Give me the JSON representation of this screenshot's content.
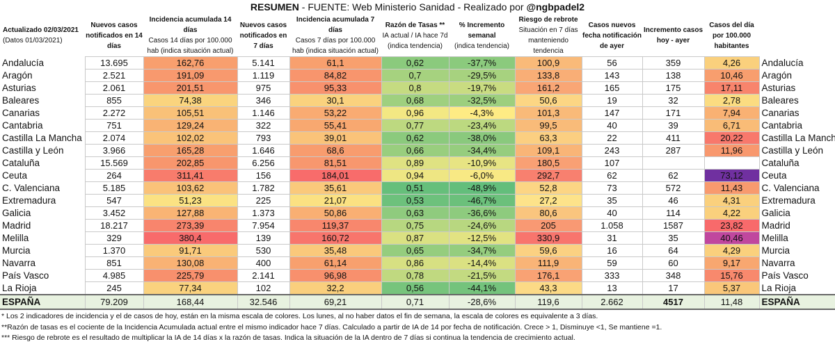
{
  "title": {
    "prefix": "RESUMEN",
    "source": " - FUENTE: Web Ministerio Sanidad  - Realizado por ",
    "author": "@ngbpadel2"
  },
  "headers": [
    {
      "b": "Actualizado 02/03/2021",
      "s": "(Datos 01/03/2021)"
    },
    {
      "b": "Nuevos casos notificados en 14 días",
      "s": ""
    },
    {
      "b": "Incidencia acumulada 14 días",
      "s": "Casos 14 días por 100.000 hab (indica situación actual)"
    },
    {
      "b": "Nuevos casos notificados en 7 días",
      "s": ""
    },
    {
      "b": "Incidencia acumulada 7 días",
      "s": "Casos 7 días por 100.000 hab (indica situación actual)"
    },
    {
      "b": "Razón de Tasas **",
      "s": "IA actual / IA hace 7d (indica tendencia)"
    },
    {
      "b": "% Incremento semanal",
      "s": "(indica tendencia)"
    },
    {
      "b": "Riesgo de rebrote",
      "s": "Situación en 7 días manteniendo tendencia"
    },
    {
      "b": "Casos nuevos fecha notificación de ayer",
      "s": ""
    },
    {
      "b": "Incremento casos hoy - ayer",
      "s": ""
    },
    {
      "b": "Casos del día por 100.000 habitantes",
      "s": ""
    },
    {
      "b": "",
      "s": ""
    }
  ],
  "rows": [
    {
      "name": "Andalucía",
      "c14": "13.695",
      "ia14": "162,76",
      "c7": "5.141",
      "ia7": "61,1",
      "rt": "0,62",
      "pct": "-37,7%",
      "rr": "100,9",
      "ayer": "56",
      "inc": "359",
      "dia": "4,26"
    },
    {
      "name": "Aragón",
      "c14": "2.521",
      "ia14": "191,09",
      "c7": "1.119",
      "ia7": "84,82",
      "rt": "0,7",
      "pct": "-29,5%",
      "rr": "133,8",
      "ayer": "143",
      "inc": "138",
      "dia": "10,46"
    },
    {
      "name": "Asturias",
      "c14": "2.061",
      "ia14": "201,51",
      "c7": "975",
      "ia7": "95,33",
      "rt": "0,8",
      "pct": "-19,7%",
      "rr": "161,2",
      "ayer": "165",
      "inc": "175",
      "dia": "17,11"
    },
    {
      "name": "Baleares",
      "c14": "855",
      "ia14": "74,38",
      "c7": "346",
      "ia7": "30,1",
      "rt": "0,68",
      "pct": "-32,5%",
      "rr": "50,6",
      "ayer": "19",
      "inc": "32",
      "dia": "2,78"
    },
    {
      "name": "Canarias",
      "c14": "2.272",
      "ia14": "105,51",
      "c7": "1.146",
      "ia7": "53,22",
      "rt": "0,96",
      "pct": "-4,3%",
      "rr": "101,3",
      "ayer": "147",
      "inc": "171",
      "dia": "7,94"
    },
    {
      "name": "Cantabria",
      "c14": "751",
      "ia14": "129,24",
      "c7": "322",
      "ia7": "55,41",
      "rt": "0,77",
      "pct": "-23,4%",
      "rr": "99,5",
      "ayer": "40",
      "inc": "39",
      "dia": "6,71"
    },
    {
      "name": "Castilla La Mancha",
      "c14": "2.074",
      "ia14": "102,02",
      "c7": "793",
      "ia7": "39,01",
      "rt": "0,62",
      "pct": "-38,0%",
      "rr": "63,3",
      "ayer": "22",
      "inc": "411",
      "dia": "20,22"
    },
    {
      "name": "Castilla y León",
      "c14": "3.966",
      "ia14": "165,28",
      "c7": "1.646",
      "ia7": "68,6",
      "rt": "0,66",
      "pct": "-34,4%",
      "rr": "109,1",
      "ayer": "243",
      "inc": "287",
      "dia": "11,96"
    },
    {
      "name": "Cataluña",
      "c14": "15.569",
      "ia14": "202,85",
      "c7": "6.256",
      "ia7": "81,51",
      "rt": "0,89",
      "pct": "-10,9%",
      "rr": "180,5",
      "ayer": "107",
      "inc": "",
      "dia": ""
    },
    {
      "name": "Ceuta",
      "c14": "264",
      "ia14": "311,41",
      "c7": "156",
      "ia7": "184,01",
      "rt": "0,94",
      "pct": "-6,0%",
      "rr": "292,7",
      "ayer": "62",
      "inc": "62",
      "dia": "73,12"
    },
    {
      "name": "C. Valenciana",
      "c14": "5.185",
      "ia14": "103,62",
      "c7": "1.782",
      "ia7": "35,61",
      "rt": "0,51",
      "pct": "-48,9%",
      "rr": "52,8",
      "ayer": "73",
      "inc": "572",
      "dia": "11,43"
    },
    {
      "name": "Extremadura",
      "c14": "547",
      "ia14": "51,23",
      "c7": "225",
      "ia7": "21,07",
      "rt": "0,53",
      "pct": "-46,7%",
      "rr": "27,2",
      "ayer": "35",
      "inc": "46",
      "dia": "4,31"
    },
    {
      "name": "Galicia",
      "c14": "3.452",
      "ia14": "127,88",
      "c7": "1.373",
      "ia7": "50,86",
      "rt": "0,63",
      "pct": "-36,6%",
      "rr": "80,6",
      "ayer": "40",
      "inc": "114",
      "dia": "4,22"
    },
    {
      "name": "Madrid",
      "c14": "18.217",
      "ia14": "273,39",
      "c7": "7.954",
      "ia7": "119,37",
      "rt": "0,75",
      "pct": "-24,6%",
      "rr": "205",
      "ayer": "1.058",
      "inc": "1587",
      "dia": "23,82"
    },
    {
      "name": "Melilla",
      "c14": "329",
      "ia14": "380,4",
      "c7": "139",
      "ia7": "160,72",
      "rt": "0,87",
      "pct": "-12,5%",
      "rr": "330,9",
      "ayer": "31",
      "inc": "35",
      "dia": "40,46"
    },
    {
      "name": "Murcia",
      "c14": "1.370",
      "ia14": "91,71",
      "c7": "530",
      "ia7": "35,48",
      "rt": "0,65",
      "pct": "-34,7%",
      "rr": "59,6",
      "ayer": "16",
      "inc": "64",
      "dia": "4,29"
    },
    {
      "name": "Navarra",
      "c14": "851",
      "ia14": "130,08",
      "c7": "400",
      "ia7": "61,14",
      "rt": "0,86",
      "pct": "-14,4%",
      "rr": "111,9",
      "ayer": "59",
      "inc": "60",
      "dia": "9,17"
    },
    {
      "name": "País Vasco",
      "c14": "4.985",
      "ia14": "225,79",
      "c7": "2.141",
      "ia7": "96,98",
      "rt": "0,78",
      "pct": "-21,5%",
      "rr": "176,1",
      "ayer": "333",
      "inc": "348",
      "dia": "15,76"
    },
    {
      "name": "La Rioja",
      "c14": "245",
      "ia14": "77,34",
      "c7": "102",
      "ia7": "32,2",
      "rt": "0,56",
      "pct": "-44,1%",
      "rr": "43,3",
      "ayer": "13",
      "inc": "17",
      "dia": "5,37"
    }
  ],
  "total": {
    "name": "ESPAÑA",
    "c14": "79.209",
    "ia14": "168,44",
    "c7": "32.546",
    "ia7": "69,21",
    "rt": "0,71",
    "pct": "-28,6%",
    "rr": "119,6",
    "ayer": "2.662",
    "inc": "4517",
    "dia": "11,48"
  },
  "notes": [
    "* Los 2 indicadores de incidencia y el de casos de hoy, están en la misma escala de colores. Los lunes, al no haber datos el fin de semana, la escala de colores es equivalente a 3 días.",
    "**Razón de tasas es el cociente de la Incidencia Acumulada actual entre el mismo indicador hace 7 días. Calculado a partir de IA de 14  por fecha de notificación. Crece > 1, Disminuye <1,  Se mantiene =1.",
    "*** Riesgo de rebrote es el resultado de multiplicar la IA de 14 días x la razón de tasas. Indica la situación de la IA dentro de 7 días si continua la tendencia de crecimiento actual."
  ],
  "colors": {
    "rt_low": "#63be7b",
    "rt_high": "#ffeb84",
    "inc_low": "#fbe383",
    "inc_mid": "#f8a06e",
    "inc_high": "#f8696b",
    "ceuta_purple": "#7030a0",
    "melilla_purple": "#c0479e"
  }
}
